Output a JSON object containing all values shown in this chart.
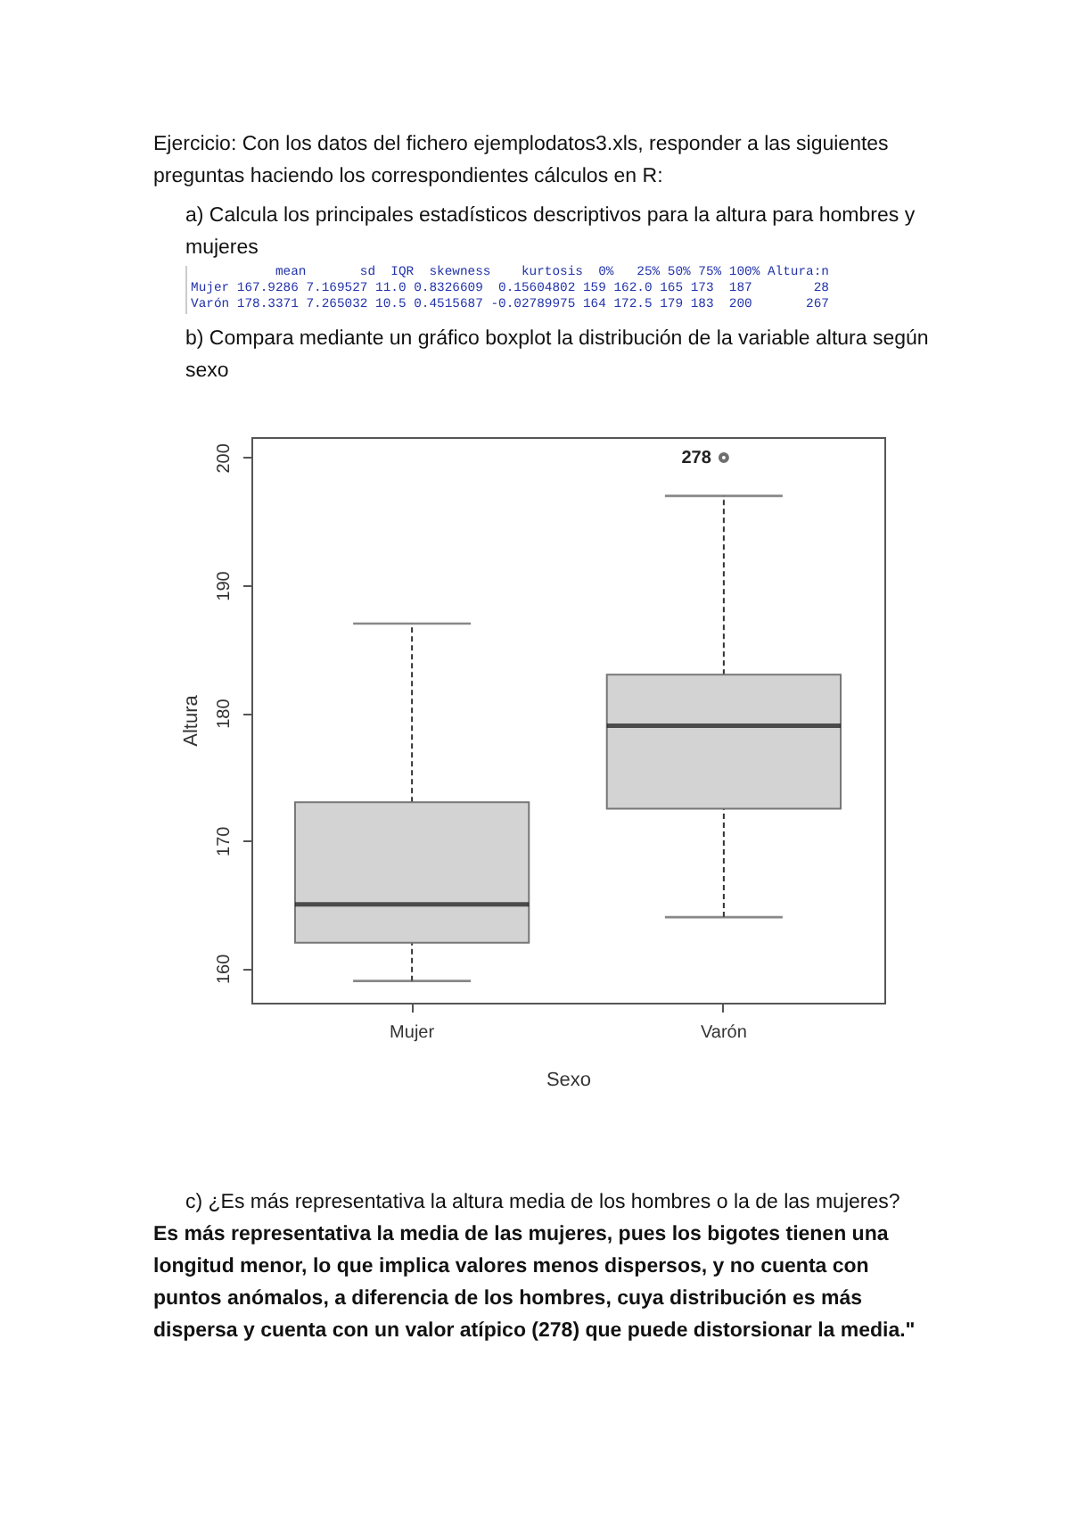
{
  "chart_data": {
    "type": "box",
    "title": "Ejercicio: Con los datos del fichero ejemplodatos3.xls, responder a las siguientes preguntas haciendo los correspondientes cálculos en R:",
    "annotations": [
      "a)  Calcula los principales estadísticos descriptivos para la altura para hombres y mujeres",
      "           mean       sd  IQR  skewness    kurtosis  0%   25% 50% 75% 100% Altura:n",
      "Mujer 167.9286 7.169527 11.0 0.8326609  0.15604802 159 162.0 165 173  187        28",
      "Varón 178.3371 7.265032 10.5 0.4515687 -0.02789975 164 172.5 179 183  200       267",
      "b)  Compara mediante un gráfico boxplot la distribución de la variable altura según sexo",
      "278",
      "c)  ¿Es más representativa la altura media de los hombres o la de las mujeres?",
      "Es más representativa la media de las mujeres, pues los bigotes tienen una longitud menor, lo que implica valores menos dispersos, y no cuenta con puntos anómalos, a diferencia de los hombres, cuya distribución es más dispersa y cuenta con un valor atípico (278) que puede distorsionar la media.\""
    ],
    "categories": [
      "Mujer",
      "Varón"
    ],
    "xlabel": "Sexo",
    "ylabel": "Altura",
    "ylim": [
      157.3,
      201.6
    ],
    "yticks": [
      160,
      170,
      180,
      190,
      200
    ],
    "series": [
      {
        "color": "#d3d3d3",
        "boxes": [
          {
            "low": 159,
            "q1": 162,
            "median": 165,
            "q3": 173,
            "high": 187
          },
          {
            "low": 164,
            "q1": 172.5,
            "median": 179,
            "q3": 183,
            "high": 197,
            "outliers": [
              200
            ]
          }
        ]
      }
    ]
  }
}
